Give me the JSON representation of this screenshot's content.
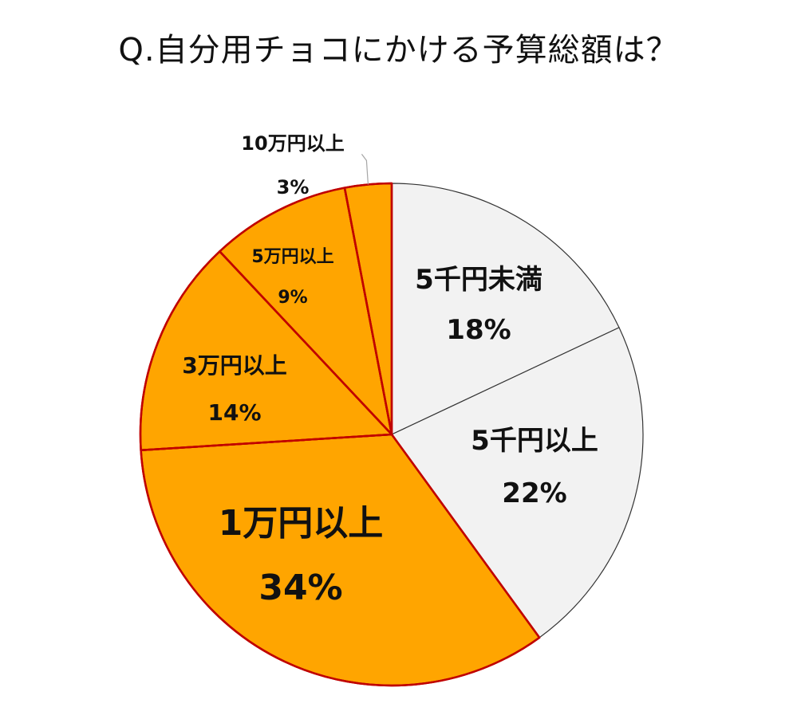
{
  "chart_data": {
    "type": "pie",
    "title": "Q.自分用チョコにかける予算総額は？",
    "slices": [
      {
        "label": "5千円未満",
        "value": 18,
        "value_label": "18%",
        "color": "#F2F2F2",
        "edge": "#333333"
      },
      {
        "label": "5千円以上",
        "value": 22,
        "value_label": "22%",
        "color": "#F2F2F2",
        "edge": "#333333"
      },
      {
        "label": "1万円以上",
        "value": 34,
        "value_label": "34%",
        "color": "#FFA500",
        "edge": "#C00000"
      },
      {
        "label": "3万円以上",
        "value": 14,
        "value_label": "14%",
        "color": "#FFA500",
        "edge": "#C00000"
      },
      {
        "label": "5万円以上",
        "value": 9,
        "value_label": "9%",
        "color": "#FFA500",
        "edge": "#C00000"
      },
      {
        "label": "10万円以上",
        "value": 3,
        "value_label": "3%",
        "color": "#FFA500",
        "edge": "#C00000"
      }
    ],
    "start": "12 o'clock",
    "direction": "clockwise",
    "legend": "none"
  }
}
